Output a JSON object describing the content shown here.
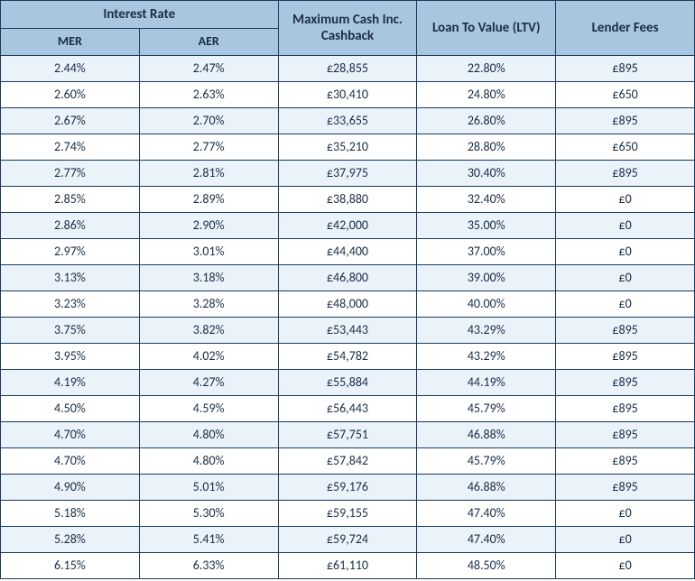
{
  "table": {
    "columns": {
      "interest_rate_group": "Interest Rate",
      "mer": "MER",
      "aer": "AER",
      "max_cash": "Maximum Cash Inc. Cashback",
      "ltv": "Loan To Value (LTV)",
      "fees": "Lender Fees"
    },
    "col_widths_pct": [
      20,
      20,
      20,
      20,
      20
    ],
    "header_bg": "#a8c6df",
    "header_fg": "#1a2e44",
    "row_odd_bg": "#eaf2fa",
    "row_even_bg": "#ffffff",
    "cell_fg": "#1a2e44",
    "border_color": "#1a3a5c",
    "rows": [
      {
        "mer": "2.44%",
        "aer": "2.47%",
        "max_cash": "£28,855",
        "ltv": "22.80%",
        "fees": "£895"
      },
      {
        "mer": "2.60%",
        "aer": "2.63%",
        "max_cash": "£30,410",
        "ltv": "24.80%",
        "fees": "£650"
      },
      {
        "mer": "2.67%",
        "aer": "2.70%",
        "max_cash": "£33,655",
        "ltv": "26.80%",
        "fees": "£895"
      },
      {
        "mer": "2.74%",
        "aer": "2.77%",
        "max_cash": "£35,210",
        "ltv": "28.80%",
        "fees": "£650"
      },
      {
        "mer": "2.77%",
        "aer": "2.81%",
        "max_cash": "£37,975",
        "ltv": "30.40%",
        "fees": "£895"
      },
      {
        "mer": "2.85%",
        "aer": "2.89%",
        "max_cash": "£38,880",
        "ltv": "32.40%",
        "fees": "£0"
      },
      {
        "mer": "2.86%",
        "aer": "2.90%",
        "max_cash": "£42,000",
        "ltv": "35.00%",
        "fees": "£0"
      },
      {
        "mer": "2.97%",
        "aer": "3.01%",
        "max_cash": "£44,400",
        "ltv": "37.00%",
        "fees": "£0"
      },
      {
        "mer": "3.13%",
        "aer": "3.18%",
        "max_cash": "£46,800",
        "ltv": "39.00%",
        "fees": "£0"
      },
      {
        "mer": "3.23%",
        "aer": "3.28%",
        "max_cash": "£48,000",
        "ltv": "40.00%",
        "fees": "£0"
      },
      {
        "mer": "3.75%",
        "aer": "3.82%",
        "max_cash": "£53,443",
        "ltv": "43.29%",
        "fees": "£895"
      },
      {
        "mer": "3.95%",
        "aer": "4.02%",
        "max_cash": "£54,782",
        "ltv": "43.29%",
        "fees": "£895"
      },
      {
        "mer": "4.19%",
        "aer": "4.27%",
        "max_cash": "£55,884",
        "ltv": "44.19%",
        "fees": "£895"
      },
      {
        "mer": "4.50%",
        "aer": "4.59%",
        "max_cash": "£56,443",
        "ltv": "45.79%",
        "fees": "£895"
      },
      {
        "mer": "4.70%",
        "aer": "4.80%",
        "max_cash": "£57,751",
        "ltv": "46.88%",
        "fees": "£895"
      },
      {
        "mer": "4.70%",
        "aer": "4.80%",
        "max_cash": "£57,842",
        "ltv": "45.79%",
        "fees": "£895"
      },
      {
        "mer": "4.90%",
        "aer": "5.01%",
        "max_cash": "£59,176",
        "ltv": "46.88%",
        "fees": "£895"
      },
      {
        "mer": "5.18%",
        "aer": "5.30%",
        "max_cash": "£59,155",
        "ltv": "47.40%",
        "fees": "£0"
      },
      {
        "mer": "5.28%",
        "aer": "5.41%",
        "max_cash": "£59,724",
        "ltv": "47.40%",
        "fees": "£0"
      },
      {
        "mer": "6.15%",
        "aer": "6.33%",
        "max_cash": "£61,110",
        "ltv": "48.50%",
        "fees": "£0"
      }
    ]
  }
}
